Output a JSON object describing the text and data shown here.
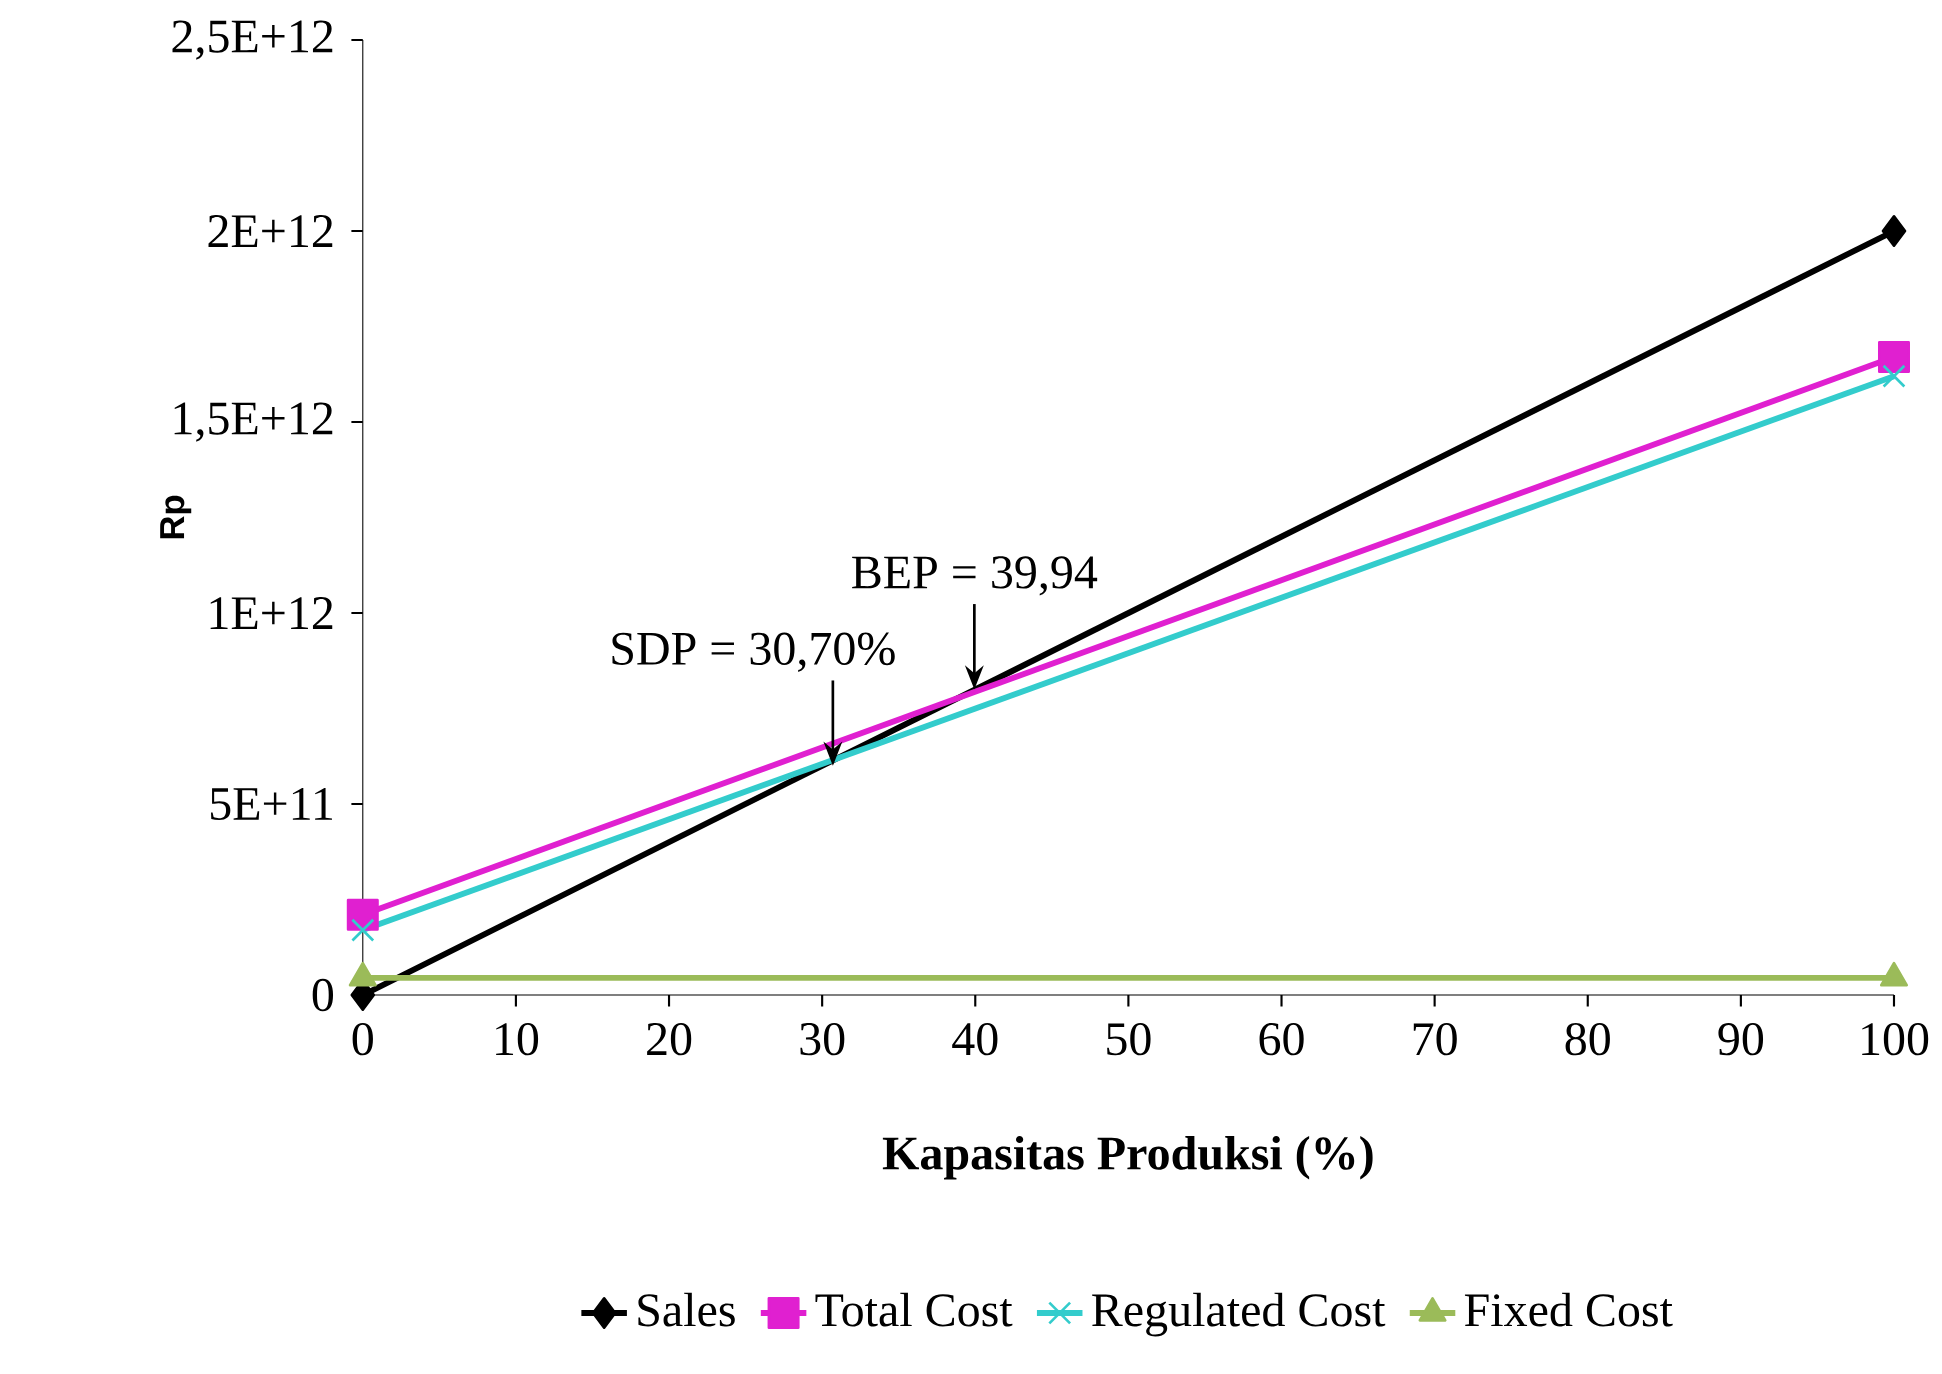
{
  "chart_data": {
    "type": "line",
    "xlabel": "Kapasitas Produksi (%)",
    "ylabel": "Rp",
    "x": [
      0,
      100
    ],
    "series": [
      {
        "name": "Sales",
        "color": "#000000",
        "marker": "diamond",
        "values": [
          0,
          2000000000000
        ]
      },
      {
        "name": "Total Cost",
        "color": "#e020d0",
        "marker": "square",
        "values": [
          210000000000,
          1670000000000
        ]
      },
      {
        "name": "Regulated Cost",
        "color": "#33cccc",
        "marker": "cross",
        "values": [
          170000000000,
          1620000000000
        ]
      },
      {
        "name": "Fixed Cost",
        "color": "#9bbb59",
        "marker": "triangle",
        "values": [
          45000000000,
          45000000000
        ]
      }
    ],
    "xlim": [
      0,
      100
    ],
    "xticks": [
      0,
      10,
      20,
      30,
      40,
      50,
      60,
      70,
      80,
      90,
      100
    ],
    "ylim": [
      0,
      2500000000000
    ],
    "yticks": [
      0,
      {
        "value": 500000000000,
        "label": "5E+11"
      },
      {
        "value": 1000000000000,
        "label": "1E+12"
      },
      {
        "value": 1500000000000,
        "label": "1,5E+12"
      },
      {
        "value": 2000000000000,
        "label": "2E+12"
      },
      {
        "value": 2500000000000,
        "label": "2,5E+12"
      }
    ],
    "annotations": [
      {
        "text": "SDP = 30,70%",
        "x": 30.7,
        "y": 600000000000
      },
      {
        "text": "BEP = 39,94",
        "x": 39.94,
        "y": 800000000000
      }
    ],
    "grid": false,
    "legend": "bottom",
    "line_style": "solid"
  }
}
